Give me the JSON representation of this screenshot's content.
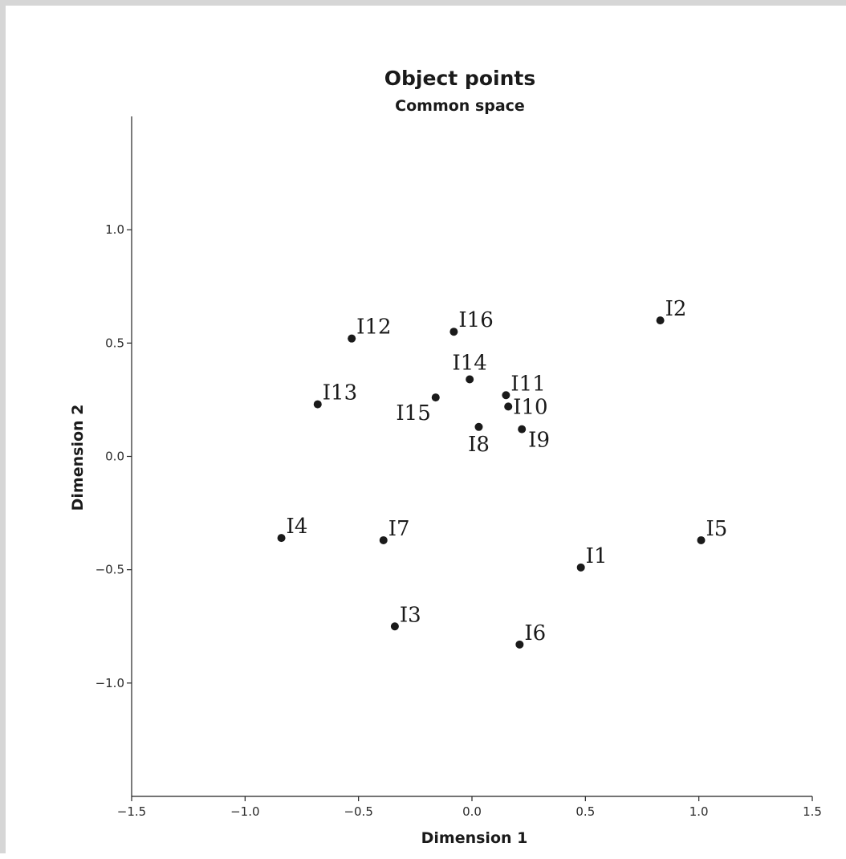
{
  "chart_data": {
    "type": "scatter",
    "title": "Object points",
    "subtitle": "Common space",
    "xlabel": "Dimension 1",
    "ylabel": "Dimension 2",
    "xlim": [
      -1.5,
      1.5
    ],
    "ylim": [
      -1.5,
      1.5
    ],
    "x_ticks": [
      {
        "value": -1.5,
        "label": "−1.5"
      },
      {
        "value": -1.0,
        "label": "−1.0"
      },
      {
        "value": -0.5,
        "label": "−0.5"
      },
      {
        "value": 0.0,
        "label": "0.0"
      },
      {
        "value": 0.5,
        "label": "0.5"
      },
      {
        "value": 1.0,
        "label": "1.0"
      },
      {
        "value": 1.5,
        "label": "1.5"
      }
    ],
    "y_ticks": [
      {
        "value": 1.0,
        "label": "1.0"
      },
      {
        "value": 0.5,
        "label": "0.5"
      },
      {
        "value": 0.0,
        "label": "0.0"
      },
      {
        "value": -0.5,
        "label": "−0.5"
      },
      {
        "value": -1.0,
        "label": "−1.0"
      }
    ],
    "grid": false,
    "legend": "none",
    "points": [
      {
        "label": "I1",
        "x": 0.48,
        "y": -0.49,
        "label_pos": "upper-right"
      },
      {
        "label": "I2",
        "x": 0.83,
        "y": 0.6,
        "label_pos": "upper-right"
      },
      {
        "label": "I3",
        "x": -0.34,
        "y": -0.75,
        "label_pos": "upper-right"
      },
      {
        "label": "I4",
        "x": -0.84,
        "y": -0.36,
        "label_pos": "upper-right"
      },
      {
        "label": "I5",
        "x": 1.01,
        "y": -0.37,
        "label_pos": "upper-right"
      },
      {
        "label": "I6",
        "x": 0.21,
        "y": -0.83,
        "label_pos": "upper-right"
      },
      {
        "label": "I7",
        "x": -0.39,
        "y": -0.37,
        "label_pos": "upper-right"
      },
      {
        "label": "I8",
        "x": 0.03,
        "y": 0.13,
        "label_pos": "below"
      },
      {
        "label": "I9",
        "x": 0.22,
        "y": 0.12,
        "label_pos": "lower-right"
      },
      {
        "label": "I10",
        "x": 0.16,
        "y": 0.22,
        "label_pos": "right"
      },
      {
        "label": "I11",
        "x": 0.15,
        "y": 0.27,
        "label_pos": "upper-right"
      },
      {
        "label": "I12",
        "x": -0.53,
        "y": 0.52,
        "label_pos": "upper-right"
      },
      {
        "label": "I13",
        "x": -0.68,
        "y": 0.23,
        "label_pos": "upper-right"
      },
      {
        "label": "I14",
        "x": -0.01,
        "y": 0.34,
        "label_pos": "above"
      },
      {
        "label": "I15",
        "x": -0.16,
        "y": 0.26,
        "label_pos": "lower-left"
      },
      {
        "label": "I16",
        "x": -0.08,
        "y": 0.55,
        "label_pos": "upper-right"
      }
    ],
    "point_color": "#1a1a1a"
  }
}
